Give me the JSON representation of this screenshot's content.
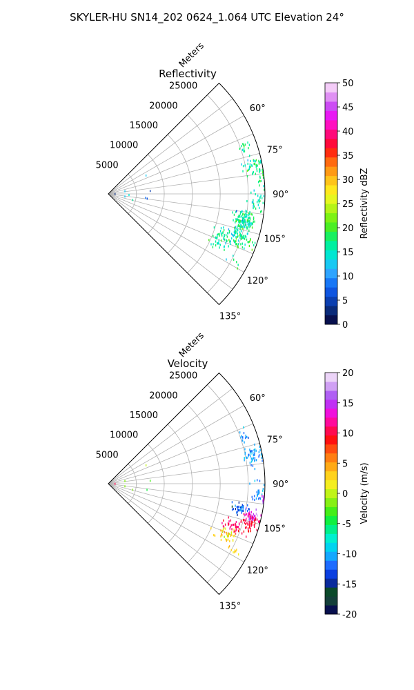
{
  "figure": {
    "suptitle": "SKYLER-HU  SN14_202  0624_1.064 UTC Elevation 24°"
  },
  "chart_data": [
    {
      "type": "polar-scatter",
      "title": "Reflectivity",
      "radial_label": "Meters",
      "r_ticks": [
        "5000",
        "10000",
        "15000",
        "20000",
        "25000"
      ],
      "r_tick_values": [
        5000,
        10000,
        15000,
        20000,
        25000
      ],
      "r_max": 28000,
      "theta_ticks": [
        "60°",
        "75°",
        "90°",
        "105°",
        "120°",
        "135°"
      ],
      "theta_tick_values": [
        60,
        75,
        90,
        105,
        120,
        135
      ],
      "theta_range": [
        45,
        135
      ],
      "grid": true,
      "colorbar": {
        "label": "Reflectivity dBZ",
        "ticks": [
          "0",
          "5",
          "10",
          "15",
          "20",
          "25",
          "30",
          "35",
          "40",
          "45",
          "50"
        ],
        "range": [
          0,
          50
        ],
        "colors": [
          "#08104e",
          "#0a2b7a",
          "#0b3fb0",
          "#0f55e0",
          "#1877f6",
          "#2ea4ff",
          "#18c8f3",
          "#00e6d2",
          "#00f0a0",
          "#19f060",
          "#4bee24",
          "#7df214",
          "#b5f418",
          "#e6f720",
          "#ffe81e",
          "#ffc41a",
          "#ff9a14",
          "#ff6a10",
          "#ff2d10",
          "#ff0a3c",
          "#ff0a7a",
          "#ff10c0",
          "#e81af4",
          "#cc4cf4",
          "#e090f4",
          "#f4ccf8"
        ]
      },
      "clusters": [
        {
          "theta": 101,
          "r": 24800,
          "dtheta": 3.5,
          "dr": 1800,
          "n": 120,
          "value": 16.5,
          "spread": 2.2
        },
        {
          "theta": 108,
          "r": 24500,
          "dtheta": 4,
          "dr": 2200,
          "n": 90,
          "value": 17,
          "spread": 2.5
        },
        {
          "theta": 112,
          "r": 22000,
          "dtheta": 4.5,
          "dr": 2000,
          "n": 55,
          "value": 15.5,
          "spread": 2
        },
        {
          "theta": 79,
          "r": 26500,
          "dtheta": 3,
          "dr": 1500,
          "n": 50,
          "value": 17,
          "spread": 2.2
        },
        {
          "theta": 71,
          "r": 25500,
          "dtheta": 2.5,
          "dr": 1000,
          "n": 14,
          "value": 17,
          "spread": 2
        },
        {
          "theta": 93,
          "r": 26800,
          "dtheta": 3.5,
          "dr": 1200,
          "n": 30,
          "value": 16,
          "spread": 2
        },
        {
          "theta": 84,
          "r": 27500,
          "dtheta": 2.5,
          "dr": 900,
          "n": 14,
          "value": 17,
          "spread": 2
        },
        {
          "theta": 118,
          "r": 26000,
          "dtheta": 2,
          "dr": 1500,
          "n": 6,
          "value": 17,
          "spread": 2
        }
      ],
      "points": [
        {
          "theta": 64,
          "r": 7500,
          "value": 12
        },
        {
          "theta": 81,
          "r": 3000,
          "value": 13
        },
        {
          "theta": 86,
          "r": 7500,
          "value": 5
        },
        {
          "theta": 91,
          "r": 1200,
          "value": 3
        },
        {
          "theta": 93,
          "r": 3700,
          "value": 14
        },
        {
          "theta": 96,
          "r": 6700,
          "value": 8
        },
        {
          "theta": 97,
          "r": 7000,
          "value": 6
        },
        {
          "theta": 99,
          "r": 3000,
          "value": 13
        },
        {
          "theta": 104,
          "r": 4500,
          "value": 16
        }
      ]
    },
    {
      "type": "polar-scatter",
      "title": "Velocity",
      "radial_label": "Meters",
      "r_ticks": [
        "5000",
        "10000",
        "15000",
        "20000",
        "25000"
      ],
      "r_tick_values": [
        5000,
        10000,
        15000,
        20000,
        25000
      ],
      "r_max": 28000,
      "theta_ticks": [
        "60°",
        "75°",
        "90°",
        "105°",
        "120°",
        "135°"
      ],
      "theta_tick_values": [
        60,
        75,
        90,
        105,
        120,
        135
      ],
      "theta_range": [
        45,
        135
      ],
      "grid": true,
      "colorbar": {
        "label": "Velocity (m/s)",
        "ticks": [
          "-20",
          "-15",
          "-10",
          "-5",
          "0",
          "5",
          "10",
          "15",
          "20"
        ],
        "range": [
          -20,
          20
        ],
        "colors": [
          "#08104e",
          "#143f3a",
          "#0b4a2a",
          "#0a2b9c",
          "#0b3fe0",
          "#1e6cff",
          "#14a8ff",
          "#00d4f0",
          "#00f0d0",
          "#00f08a",
          "#10f040",
          "#44ee18",
          "#86f014",
          "#c0f418",
          "#f4ee20",
          "#ffd21c",
          "#ffaa16",
          "#ff7e12",
          "#ff4c10",
          "#ff1010",
          "#ff0a50",
          "#ff0a9c",
          "#f010dc",
          "#c030f4",
          "#b060f4",
          "#d0a0f4",
          "#ecd4f8"
        ]
      },
      "clusters": [
        {
          "theta": 79,
          "r": 26500,
          "dtheta": 3,
          "dr": 1500,
          "n": 50,
          "value": -10.5,
          "spread": 0.8
        },
        {
          "theta": 93,
          "r": 26800,
          "dtheta": 3.5,
          "dr": 1200,
          "n": 30,
          "value": -11,
          "spread": 0.8
        },
        {
          "theta": 71,
          "r": 25500,
          "dtheta": 2.5,
          "dr": 1000,
          "n": 14,
          "value": -11,
          "spread": 0.8
        },
        {
          "theta": 101,
          "r": 24000,
          "dtheta": 2,
          "dr": 1400,
          "n": 40,
          "value": -12.5,
          "spread": 1.5
        },
        {
          "theta": 103,
          "r": 26000,
          "dtheta": 2,
          "dr": 1400,
          "n": 45,
          "value": 14,
          "spread": 2
        },
        {
          "theta": 106,
          "r": 26500,
          "dtheta": 2.5,
          "dr": 1200,
          "n": 45,
          "value": 10,
          "spread": 0.6
        },
        {
          "theta": 109,
          "r": 24000,
          "dtheta": 3,
          "dr": 1800,
          "n": 40,
          "value": 10.5,
          "spread": 0.8
        },
        {
          "theta": 113,
          "r": 23000,
          "dtheta": 3.5,
          "dr": 1800,
          "n": 40,
          "value": 3,
          "spread": 1.5
        },
        {
          "theta": 118,
          "r": 25500,
          "dtheta": 2,
          "dr": 1500,
          "n": 8,
          "value": 2,
          "spread": 1
        },
        {
          "theta": 96,
          "r": 27800,
          "dtheta": 1.5,
          "dr": 700,
          "n": 10,
          "value": 15,
          "spread": 1.5
        }
      ],
      "points": [
        {
          "theta": 64,
          "r": 7500,
          "value": 0
        },
        {
          "theta": 81,
          "r": 3000,
          "value": -1
        },
        {
          "theta": 86,
          "r": 7500,
          "value": -3
        },
        {
          "theta": 91,
          "r": 1200,
          "value": 10
        },
        {
          "theta": 99,
          "r": 7000,
          "value": -5
        },
        {
          "theta": 99,
          "r": 3000,
          "value": -1
        },
        {
          "theta": 104,
          "r": 4500,
          "value": -2
        }
      ]
    }
  ]
}
